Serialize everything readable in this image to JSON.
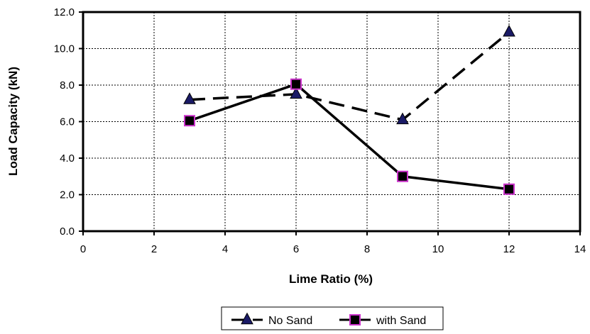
{
  "chart_data": {
    "type": "line",
    "xlabel": "Lime Ratio (%)",
    "ylabel": "Load Capacity (kN)",
    "xlim": [
      0,
      14
    ],
    "ylim": [
      0,
      12
    ],
    "x_ticks": [
      "0",
      "2",
      "4",
      "6",
      "8",
      "10",
      "12",
      "14"
    ],
    "y_ticks": [
      "0.0",
      "2.0",
      "4.0",
      "6.0",
      "8.0",
      "10.0",
      "12.0"
    ],
    "grid": true,
    "legend_position": "bottom",
    "series": [
      {
        "name": "No Sand",
        "x": [
          3,
          6,
          9,
          12
        ],
        "values": [
          7.2,
          7.5,
          6.1,
          10.9
        ],
        "line_style": "dashed",
        "marker": "triangle",
        "marker_color": "#1a1a66",
        "line_color": "#000000"
      },
      {
        "name": "with Sand",
        "x": [
          3,
          6,
          9,
          12
        ],
        "values": [
          6.05,
          8.05,
          3.0,
          2.3
        ],
        "line_style": "solid",
        "marker": "square",
        "marker_color": "#000000",
        "marker_edge_color": "#cc33cc",
        "line_color": "#000000"
      }
    ]
  }
}
